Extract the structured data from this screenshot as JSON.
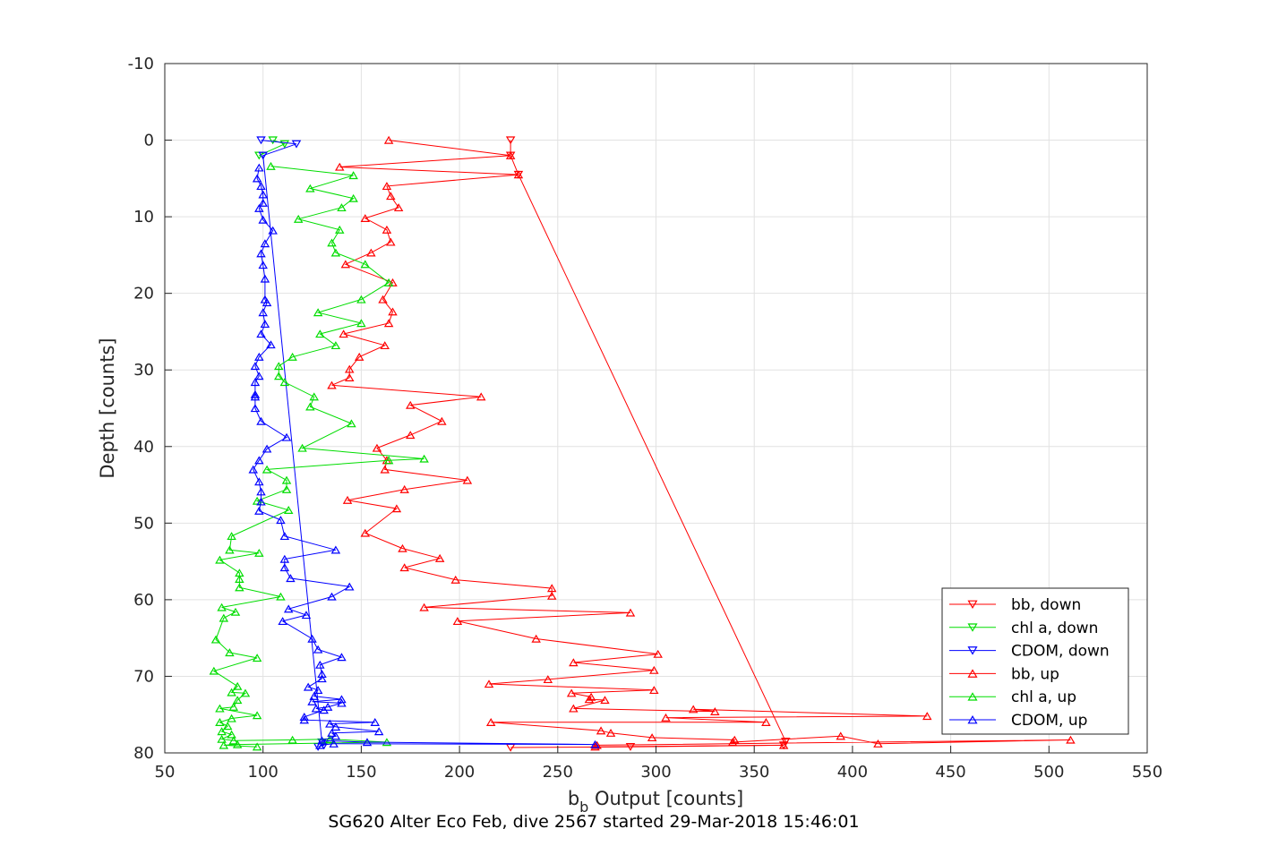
{
  "chart_data": {
    "type": "line",
    "xlabel": "b",
    "xlabel_sub": "b",
    "xlabel_rest": " Output [counts]",
    "ylabel": "Depth [counts]",
    "caption": "SG620 Alter Eco Feb, dive 2567 started 29-Mar-2018 15:46:01",
    "xlim": [
      50,
      550
    ],
    "ylim": [
      -10,
      80
    ],
    "y_reversed": true,
    "xticks": [
      "50",
      "100",
      "150",
      "200",
      "250",
      "300",
      "350",
      "400",
      "450",
      "500",
      "550"
    ],
    "yticks": [
      "-10",
      "0",
      "10",
      "20",
      "30",
      "40",
      "50",
      "60",
      "70",
      "80"
    ],
    "grid": true,
    "legend_position": "bottom-right",
    "series": [
      {
        "name": "bb, down",
        "color": "#ff0000",
        "marker": "triangle-down",
        "points": [
          [
            226,
            0
          ],
          [
            226,
            2
          ],
          [
            230,
            4.5
          ],
          [
            366,
            78.5
          ],
          [
            365,
            79
          ],
          [
            287,
            79.2
          ],
          [
            226,
            79.3
          ]
        ]
      },
      {
        "name": "chl a, down",
        "color": "#00dd00",
        "marker": "triangle-down",
        "points": [
          [
            105,
            0
          ],
          [
            111,
            0.5
          ],
          [
            98,
            2
          ]
        ]
      },
      {
        "name": "CDOM, down",
        "color": "#0000ff",
        "marker": "triangle-down",
        "points": [
          [
            99,
            0
          ],
          [
            117,
            0.5
          ],
          [
            100,
            2
          ],
          [
            130,
            78.6
          ],
          [
            131,
            79
          ],
          [
            128,
            79.2
          ]
        ]
      },
      {
        "name": "bb, up",
        "color": "#ff0000",
        "marker": "triangle-up",
        "points": [
          [
            164,
            0
          ],
          [
            226,
            2
          ],
          [
            139,
            3.5
          ],
          [
            230,
            4.5
          ],
          [
            163,
            6
          ],
          [
            165,
            7.3
          ],
          [
            169,
            8.8
          ],
          [
            152,
            10.2
          ],
          [
            163,
            11.7
          ],
          [
            165,
            13.3
          ],
          [
            155,
            14.7
          ],
          [
            142,
            16.2
          ],
          [
            166,
            18.6
          ],
          [
            161,
            20.8
          ],
          [
            166,
            22.4
          ],
          [
            164,
            23.9
          ],
          [
            141,
            25.3
          ],
          [
            162,
            26.8
          ],
          [
            149,
            28.3
          ],
          [
            144,
            29.9
          ],
          [
            144,
            31
          ],
          [
            135,
            32
          ],
          [
            211,
            33.5
          ],
          [
            175,
            34.6
          ],
          [
            191,
            36.7
          ],
          [
            175,
            38.5
          ],
          [
            158,
            40.2
          ],
          [
            163,
            41.8
          ],
          [
            162,
            43
          ],
          [
            204,
            44.4
          ],
          [
            172,
            45.6
          ],
          [
            143,
            47
          ],
          [
            168,
            48.1
          ],
          [
            152,
            51.3
          ],
          [
            171,
            53.3
          ],
          [
            190,
            54.6
          ],
          [
            172,
            55.8
          ],
          [
            198,
            57.4
          ],
          [
            247,
            58.5
          ],
          [
            247,
            59.5
          ],
          [
            182,
            61
          ],
          [
            287,
            61.7
          ],
          [
            199,
            62.8
          ],
          [
            239,
            65.1
          ],
          [
            301,
            67.1
          ],
          [
            258,
            68.2
          ],
          [
            299,
            69.2
          ],
          [
            245,
            70.4
          ],
          [
            215,
            71
          ],
          [
            299,
            71.8
          ],
          [
            257,
            72.2
          ],
          [
            267,
            72.7
          ],
          [
            266,
            73
          ],
          [
            274,
            73.1
          ],
          [
            258,
            74.2
          ],
          [
            330,
            74.6
          ],
          [
            319,
            74.3
          ],
          [
            438,
            75.2
          ],
          [
            305,
            75.4
          ],
          [
            356,
            76
          ],
          [
            216,
            76
          ],
          [
            272,
            77.1
          ],
          [
            277,
            77.4
          ],
          [
            298,
            78
          ],
          [
            340,
            78.3
          ],
          [
            339,
            78.6
          ],
          [
            394,
            77.8
          ],
          [
            413,
            78.8
          ],
          [
            511,
            78.3
          ],
          [
            270,
            79
          ],
          [
            269,
            79.2
          ],
          [
            365,
            79
          ]
        ]
      },
      {
        "name": "chl a, up",
        "color": "#00dd00",
        "marker": "triangle-up",
        "points": [
          [
            104,
            3.4
          ],
          [
            146,
            4.6
          ],
          [
            124,
            6.3
          ],
          [
            146,
            7.6
          ],
          [
            140,
            8.8
          ],
          [
            118,
            10.3
          ],
          [
            139,
            11.7
          ],
          [
            135,
            13.4
          ],
          [
            137,
            14.7
          ],
          [
            152,
            16.2
          ],
          [
            164,
            18.6
          ],
          [
            150,
            20.8
          ],
          [
            128,
            22.5
          ],
          [
            150,
            23.9
          ],
          [
            129,
            25.3
          ],
          [
            137,
            26.8
          ],
          [
            115,
            28.3
          ],
          [
            108,
            29.5
          ],
          [
            108,
            30.8
          ],
          [
            111,
            31.6
          ],
          [
            126,
            33.5
          ],
          [
            124,
            34.8
          ],
          [
            145,
            37
          ],
          [
            120,
            40.2
          ],
          [
            182,
            41.6
          ],
          [
            164,
            41.8
          ],
          [
            102,
            43
          ],
          [
            112,
            44.4
          ],
          [
            112,
            45.6
          ],
          [
            97,
            47.1
          ],
          [
            113,
            48.3
          ],
          [
            84,
            51.7
          ],
          [
            83,
            53.5
          ],
          [
            98,
            53.9
          ],
          [
            78,
            54.8
          ],
          [
            88,
            56.5
          ],
          [
            88,
            57.3
          ],
          [
            88,
            58.4
          ],
          [
            109,
            59.6
          ],
          [
            79,
            61
          ],
          [
            86,
            61.6
          ],
          [
            80,
            62.4
          ],
          [
            76,
            65.2
          ],
          [
            83,
            66.9
          ],
          [
            97,
            67.6
          ],
          [
            75,
            69.3
          ],
          [
            87,
            71.3
          ],
          [
            84,
            72.1
          ],
          [
            91,
            72.2
          ],
          [
            87,
            73.1
          ],
          [
            85,
            74
          ],
          [
            78,
            74.2
          ],
          [
            97,
            75.1
          ],
          [
            84,
            75.5
          ],
          [
            78,
            76
          ],
          [
            82,
            76.5
          ],
          [
            79,
            77.2
          ],
          [
            84,
            77.6
          ],
          [
            79,
            78.2
          ],
          [
            85,
            78.4
          ],
          [
            115,
            78.3
          ],
          [
            134,
            78.2
          ],
          [
            163,
            78.6
          ],
          [
            87,
            78.9
          ],
          [
            80,
            79
          ],
          [
            97,
            79.2
          ]
        ]
      },
      {
        "name": "CDOM, up",
        "color": "#0000ff",
        "marker": "triangle-up",
        "points": [
          [
            98,
            3.6
          ],
          [
            97,
            5
          ],
          [
            99,
            6
          ],
          [
            100,
            7.1
          ],
          [
            100,
            8.2
          ],
          [
            98,
            8.9
          ],
          [
            100,
            10.4
          ],
          [
            105,
            11.8
          ],
          [
            101,
            13.5
          ],
          [
            99,
            14.8
          ],
          [
            100,
            16.3
          ],
          [
            101,
            18.1
          ],
          [
            101,
            20.8
          ],
          [
            102,
            21.2
          ],
          [
            100,
            22.5
          ],
          [
            101,
            24
          ],
          [
            99,
            25.3
          ],
          [
            104,
            26.7
          ],
          [
            98,
            28.3
          ],
          [
            96,
            29.5
          ],
          [
            98,
            30.8
          ],
          [
            96,
            31.6
          ],
          [
            96,
            33.2
          ],
          [
            96,
            33.5
          ],
          [
            96,
            35
          ],
          [
            99,
            36.7
          ],
          [
            112,
            38.8
          ],
          [
            102,
            40.3
          ],
          [
            98,
            41.8
          ],
          [
            95,
            43
          ],
          [
            98,
            44.6
          ],
          [
            99,
            45.9
          ],
          [
            99,
            47.2
          ],
          [
            98,
            48.4
          ],
          [
            109,
            49.6
          ],
          [
            111,
            51.7
          ],
          [
            137,
            53.5
          ],
          [
            111,
            54.7
          ],
          [
            111,
            55.8
          ],
          [
            114,
            57.2
          ],
          [
            144,
            58.3
          ],
          [
            135,
            59.6
          ],
          [
            113,
            61.2
          ],
          [
            122,
            62
          ],
          [
            110,
            62.8
          ],
          [
            125,
            65.1
          ],
          [
            128,
            66.5
          ],
          [
            140,
            67.5
          ],
          [
            129,
            68.5
          ],
          [
            130,
            69.7
          ],
          [
            130,
            70.3
          ],
          [
            123,
            71.4
          ],
          [
            128,
            71.8
          ],
          [
            126,
            72.6
          ],
          [
            140,
            73
          ],
          [
            125,
            73.3
          ],
          [
            140,
            73.5
          ],
          [
            133,
            74
          ],
          [
            127,
            74.2
          ],
          [
            131,
            74.4
          ],
          [
            121,
            75.3
          ],
          [
            121,
            75.7
          ],
          [
            157,
            76
          ],
          [
            134,
            76.2
          ],
          [
            137,
            76.6
          ],
          [
            159,
            77.2
          ],
          [
            135,
            77.4
          ],
          [
            137,
            77.8
          ],
          [
            130,
            78.4
          ],
          [
            153,
            78.6
          ],
          [
            269,
            78.9
          ],
          [
            136,
            78.8
          ],
          [
            129,
            79
          ]
        ]
      }
    ]
  }
}
